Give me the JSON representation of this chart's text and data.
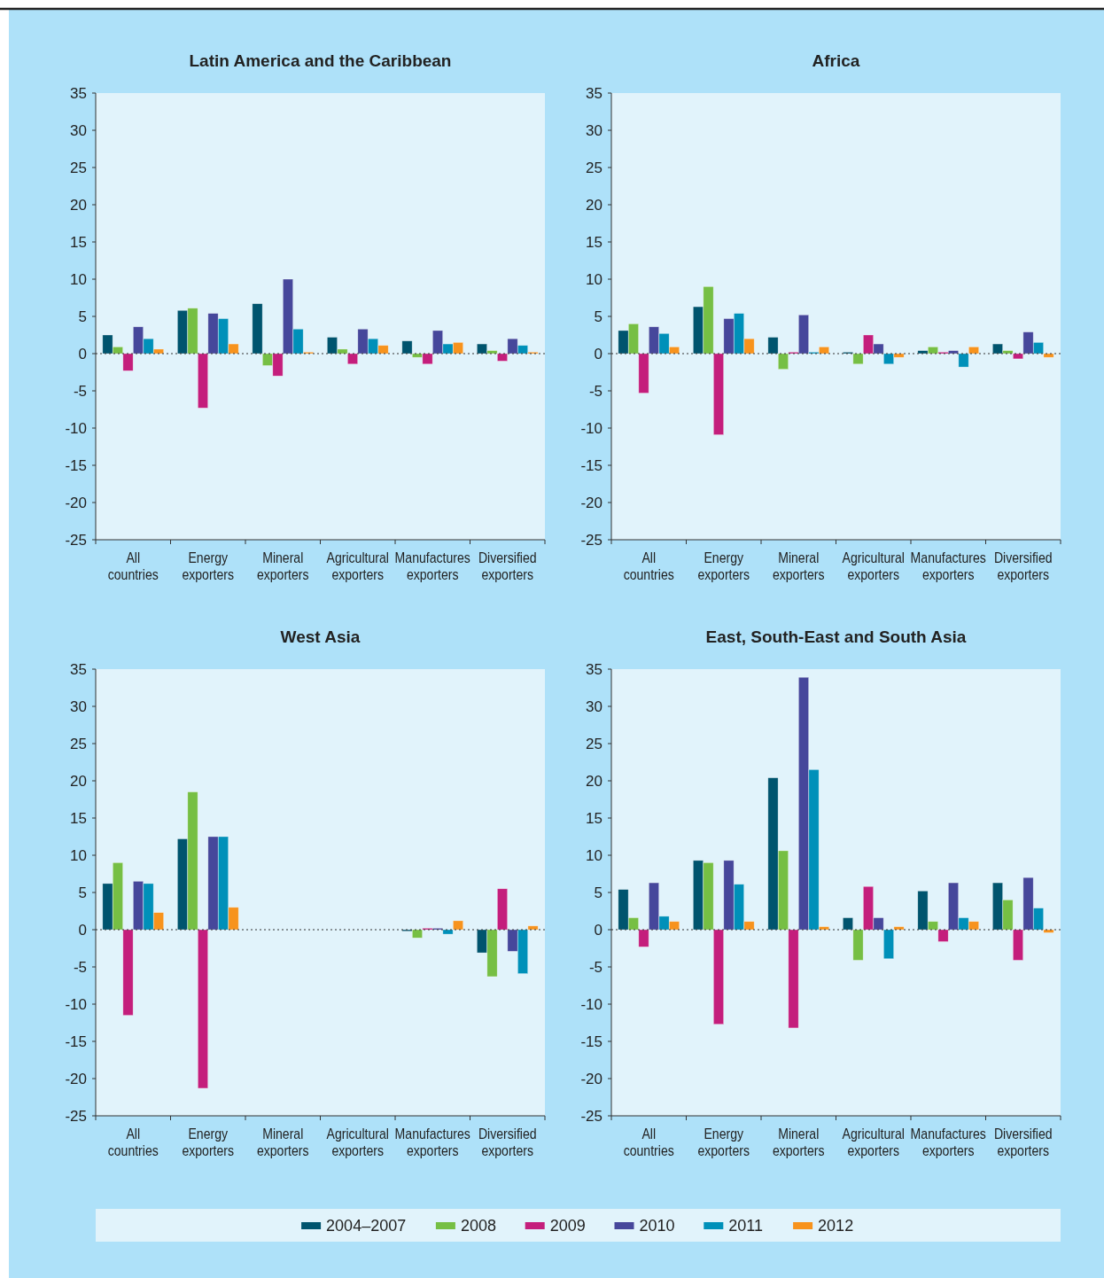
{
  "chart_data": [
    {
      "type": "bar",
      "title": "Latin America and the Caribbean",
      "categories": [
        "All countries",
        "Energy exporters",
        "Mineral exporters",
        "Agricultural exporters",
        "Manufactures exporters",
        "Diversified exporters"
      ],
      "ylim": [
        -25,
        35
      ],
      "yticks": [
        -25,
        -20,
        -15,
        -10,
        -5,
        0,
        5,
        10,
        15,
        20,
        25,
        30,
        35
      ],
      "grid": false,
      "legend": "bottom",
      "ref_lines": [
        {
          "axis": "y",
          "value": 0,
          "line_style": "dotted",
          "color": "#333333"
        }
      ],
      "series": [
        {
          "name": "2004–2007",
          "color": "#00546e",
          "values": [
            2.5,
            5.8,
            6.7,
            2.2,
            1.7,
            1.3
          ]
        },
        {
          "name": "2008",
          "color": "#76bf44",
          "values": [
            0.9,
            6.1,
            -1.6,
            0.6,
            -0.5,
            0.4
          ]
        },
        {
          "name": "2009",
          "color": "#c41e7c",
          "values": [
            -2.3,
            -7.3,
            -3.0,
            -1.4,
            -1.4,
            -1.0
          ]
        },
        {
          "name": "2010",
          "color": "#46479b",
          "values": [
            3.6,
            5.4,
            10.0,
            3.3,
            3.1,
            2.0
          ]
        },
        {
          "name": "2011",
          "color": "#0090b9",
          "values": [
            2.0,
            4.7,
            3.3,
            2.0,
            1.3,
            1.1
          ]
        },
        {
          "name": "2012",
          "color": "#f7931d",
          "values": [
            0.6,
            1.3,
            0.2,
            1.1,
            1.5,
            0.2
          ]
        }
      ]
    },
    {
      "type": "bar",
      "title": "Africa",
      "categories": [
        "All countries",
        "Energy exporters",
        "Mineral exporters",
        "Agricultural exporters",
        "Manufactures exporters",
        "Diversified exporters"
      ],
      "ylim": [
        -25,
        35
      ],
      "yticks": [
        -25,
        -20,
        -15,
        -10,
        -5,
        0,
        5,
        10,
        15,
        20,
        25,
        30,
        35
      ],
      "grid": false,
      "ref_lines": [
        {
          "axis": "y",
          "value": 0,
          "line_style": "dotted",
          "color": "#333333"
        }
      ],
      "series": [
        {
          "color": "#00546e",
          "values": [
            3.1,
            6.3,
            2.2,
            0.2,
            0.4,
            1.3
          ]
        },
        {
          "color": "#76bf44",
          "values": [
            4.0,
            9.0,
            -2.1,
            -1.4,
            0.9,
            0.4
          ]
        },
        {
          "color": "#c41e7c",
          "values": [
            -5.3,
            -10.9,
            0.2,
            2.5,
            0.2,
            -0.7
          ]
        },
        {
          "color": "#46479b",
          "values": [
            3.6,
            4.7,
            5.2,
            1.3,
            0.4,
            2.9
          ]
        },
        {
          "color": "#0090b9",
          "values": [
            2.7,
            5.4,
            0.2,
            -1.4,
            -1.8,
            1.5
          ]
        },
        {
          "color": "#f7931d",
          "values": [
            0.9,
            2.0,
            0.9,
            -0.5,
            0.9,
            -0.5
          ]
        }
      ]
    },
    {
      "type": "bar",
      "title": "West Asia",
      "categories": [
        "All countries",
        "Energy exporters",
        "Mineral exporters",
        "Agricultural exporters",
        "Manufactures exporters",
        "Diversified exporters"
      ],
      "ylim": [
        -25,
        35
      ],
      "yticks": [
        -25,
        -20,
        -15,
        -10,
        -5,
        0,
        5,
        10,
        15,
        20,
        25,
        30,
        35
      ],
      "grid": false,
      "ref_lines": [
        {
          "axis": "y",
          "value": 0,
          "line_style": "dotted",
          "color": "#333333"
        }
      ],
      "series": [
        {
          "color": "#00546e",
          "values": [
            6.2,
            12.2,
            null,
            null,
            -0.2,
            -3.1
          ]
        },
        {
          "color": "#76bf44",
          "values": [
            9.0,
            18.5,
            null,
            null,
            -1.1,
            -6.3
          ]
        },
        {
          "color": "#c41e7c",
          "values": [
            -11.5,
            -21.3,
            null,
            null,
            0.2,
            5.5
          ]
        },
        {
          "color": "#46479b",
          "values": [
            6.5,
            12.5,
            null,
            null,
            0.2,
            -2.9
          ]
        },
        {
          "color": "#0090b9",
          "values": [
            6.2,
            12.5,
            null,
            null,
            -0.6,
            -5.9
          ]
        },
        {
          "color": "#f7931d",
          "values": [
            2.3,
            3.0,
            null,
            null,
            1.2,
            0.5
          ]
        }
      ]
    },
    {
      "type": "bar",
      "title": "East, South-East and South Asia",
      "categories": [
        "All countries",
        "Energy exporters",
        "Mineral exporters",
        "Agricultural exporters",
        "Manufactures exporters",
        "Diversified exporters"
      ],
      "ylim": [
        -25,
        35
      ],
      "yticks": [
        -25,
        -20,
        -15,
        -10,
        -5,
        0,
        5,
        10,
        15,
        20,
        25,
        30,
        35
      ],
      "grid": false,
      "ref_lines": [
        {
          "axis": "y",
          "value": 0,
          "line_style": "dotted",
          "color": "#333333"
        }
      ],
      "series": [
        {
          "color": "#00546e",
          "values": [
            5.4,
            9.3,
            20.4,
            1.6,
            5.2,
            6.3
          ]
        },
        {
          "color": "#76bf44",
          "values": [
            1.6,
            9.0,
            10.6,
            -4.1,
            1.1,
            4.0
          ]
        },
        {
          "color": "#c41e7c",
          "values": [
            -2.3,
            -12.7,
            -13.2,
            5.8,
            -1.6,
            -4.1
          ]
        },
        {
          "color": "#46479b",
          "values": [
            6.3,
            9.3,
            33.9,
            1.6,
            6.3,
            7.0
          ]
        },
        {
          "color": "#0090b9",
          "values": [
            1.8,
            6.1,
            21.5,
            -3.9,
            1.6,
            2.9
          ]
        },
        {
          "color": "#f7931d",
          "values": [
            1.1,
            1.1,
            0.4,
            0.4,
            1.1,
            -0.4
          ]
        }
      ]
    }
  ]
}
